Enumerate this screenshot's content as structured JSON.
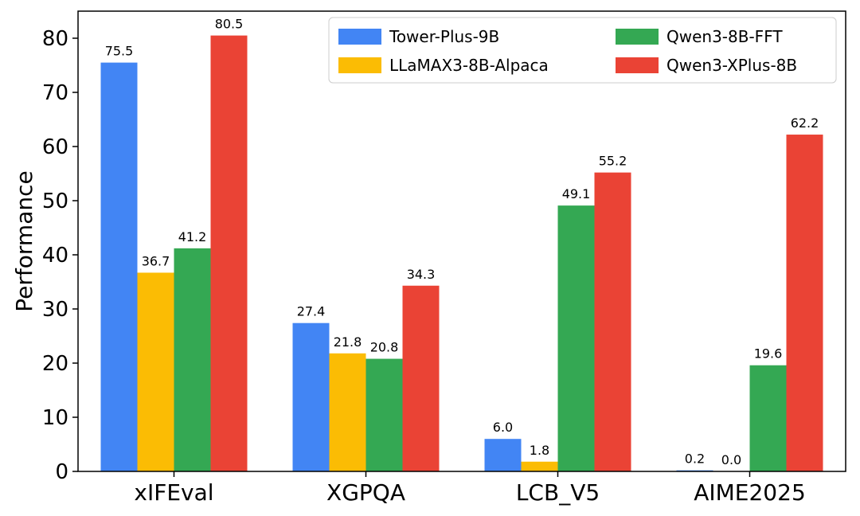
{
  "chart_data": {
    "type": "bar",
    "title": "",
    "xlabel": "",
    "ylabel": "Performance",
    "categories": [
      "xIFEval",
      "XGPQA",
      "LCB_V5",
      "AIME2025"
    ],
    "series": [
      {
        "name": "Tower-Plus-9B",
        "color": "#4285f4",
        "values": [
          75.5,
          27.4,
          6.0,
          0.2
        ],
        "labels": [
          "75.5",
          "27.4",
          "6.0",
          "0.2"
        ]
      },
      {
        "name": "LLaMAX3-8B-Alpaca",
        "color": "#fbbc04",
        "values": [
          36.7,
          21.8,
          1.8,
          0.0
        ],
        "labels": [
          "36.7",
          "21.8",
          "1.8",
          "0.0"
        ]
      },
      {
        "name": "Qwen3-8B-FFT",
        "color": "#34a853",
        "values": [
          41.2,
          20.8,
          49.1,
          19.6
        ],
        "labels": [
          "41.2",
          "20.8",
          "49.1",
          "19.6"
        ]
      },
      {
        "name": "Qwen3-XPlus-8B",
        "color": "#ea4335",
        "values": [
          80.5,
          34.3,
          55.2,
          62.2
        ],
        "labels": [
          "80.5",
          "34.3",
          "55.2",
          "62.2"
        ]
      }
    ],
    "ylim": [
      0,
      85
    ],
    "yticks": [
      0,
      10,
      20,
      30,
      40,
      50,
      60,
      70,
      80
    ],
    "ytick_labels": [
      "0",
      "10",
      "20",
      "30",
      "40",
      "50",
      "60",
      "70",
      "80"
    ],
    "grid": false,
    "legend": {
      "position": "top-right",
      "columns": 2
    }
  }
}
